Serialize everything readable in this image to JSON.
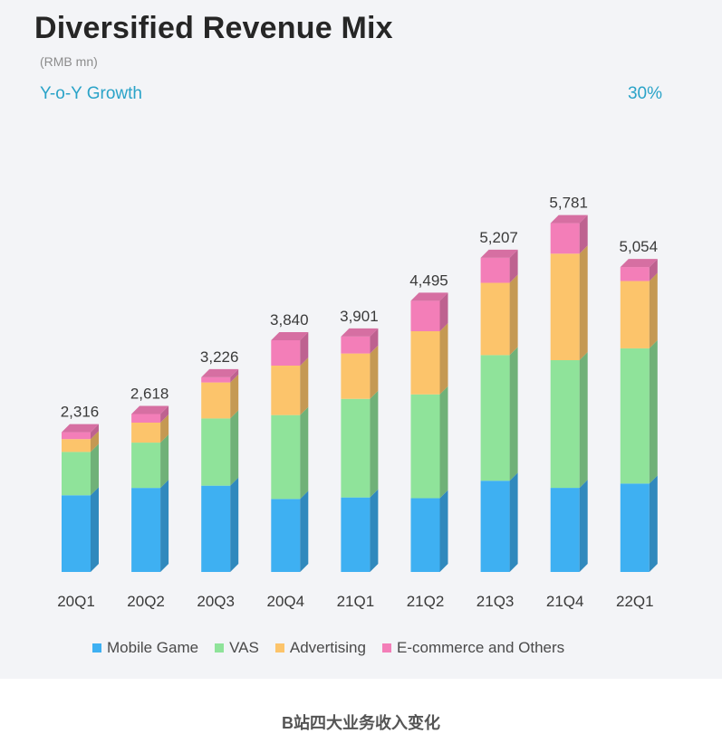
{
  "title": "Diversified Revenue Mix",
  "subtitle": "(RMB mn)",
  "yoy": {
    "label": "Y-o-Y Growth",
    "value": "30%"
  },
  "caption": "B站四大业务收入变化",
  "chart_data": {
    "type": "bar",
    "stacked": true,
    "title": "Diversified Revenue Mix",
    "unit": "(RMB mn)",
    "categories": [
      "20Q1",
      "20Q2",
      "20Q3",
      "20Q4",
      "21Q1",
      "21Q2",
      "21Q3",
      "21Q4",
      "22Q1"
    ],
    "totals": [
      "2,316",
      "2,618",
      "3,226",
      "3,840",
      "3,901",
      "4,495",
      "5,207",
      "5,781",
      "5,054"
    ],
    "total_values": [
      2316,
      2618,
      3226,
      3840,
      3901,
      4495,
      5207,
      5781,
      5054
    ],
    "series": [
      {
        "name": "Mobile Game",
        "color": "#3eb0f2",
        "values": [
          1271,
          1393,
          1430,
          1210,
          1235,
          1223,
          1512,
          1394,
          1465
        ]
      },
      {
        "name": "VAS",
        "color": "#8fe39a",
        "values": [
          718,
          751,
          1114,
          1390,
          1634,
          1720,
          2082,
          2116,
          2241
        ]
      },
      {
        "name": "Advertising",
        "color": "#fcc46b",
        "values": [
          213,
          331,
          597,
          820,
          752,
          1047,
          1198,
          1766,
          1116
        ]
      },
      {
        "name": "E-commerce and Others",
        "color": "#f37eb8",
        "values": [
          114,
          143,
          85,
          420,
          280,
          505,
          415,
          505,
          232
        ]
      }
    ],
    "ylim": [
      0,
      6000
    ],
    "legend_position": "bottom",
    "grid": false
  }
}
